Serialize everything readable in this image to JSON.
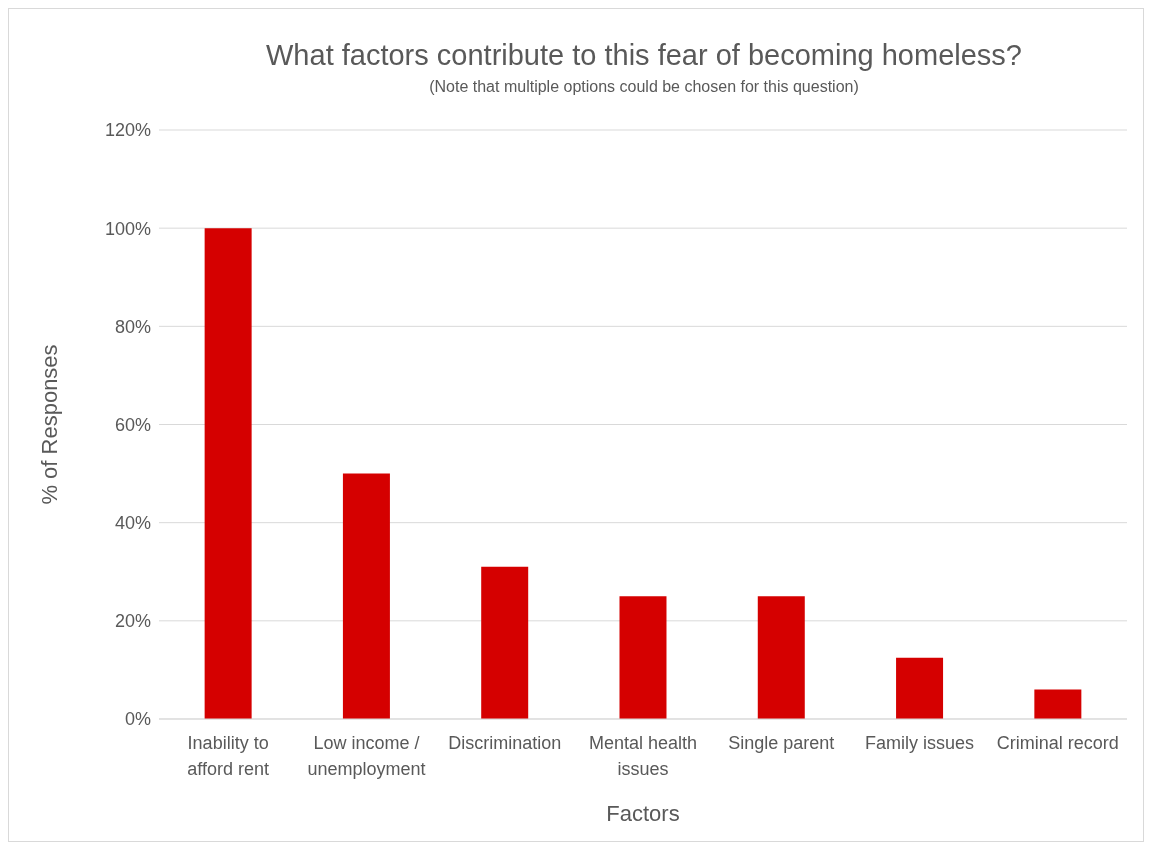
{
  "chart_data": {
    "type": "bar",
    "title": "What factors contribute to this fear of becoming homeless?",
    "subtitle": "(Note that multiple options could be chosen for this question)",
    "xlabel": "Factors",
    "ylabel": "% of Responses",
    "categories": [
      "Inability to afford rent",
      "Low income / unemployment",
      "Discrimination",
      "Mental health issues",
      "Single parent",
      "Family issues",
      "Criminal record"
    ],
    "values": [
      100,
      50,
      31,
      25,
      25,
      12.5,
      6
    ],
    "color": "#d50000",
    "ylim": [
      0,
      120
    ],
    "yticks": [
      {
        "value": 0,
        "label": "0%"
      },
      {
        "value": 20,
        "label": "20%"
      },
      {
        "value": 40,
        "label": "40%"
      },
      {
        "value": 60,
        "label": "60%"
      },
      {
        "value": 80,
        "label": "80%"
      },
      {
        "value": 100,
        "label": "100%"
      },
      {
        "value": 120,
        "label": "120%"
      }
    ],
    "grid": "y",
    "legend": false
  }
}
